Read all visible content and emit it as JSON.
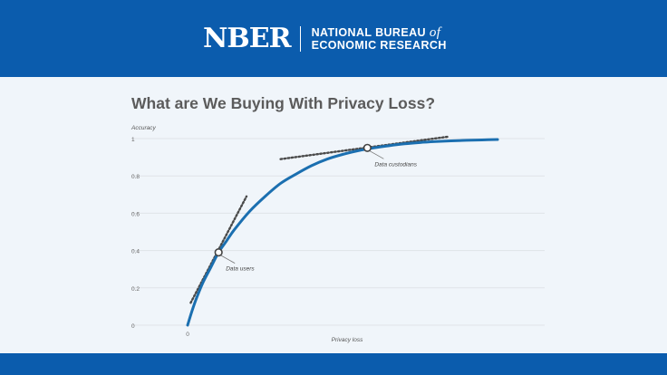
{
  "header": {
    "logo_mark": "NBER",
    "org_line1_main": "NATIONAL BUREAU ",
    "org_line1_italic": "of",
    "org_line2": "ECONOMIC RESEARCH"
  },
  "colors": {
    "brand_blue": "#0b5cad",
    "curve_blue": "#1b6fb0",
    "tangent": "#4a4a4a",
    "background": "#f0f5fa",
    "grid": "#dfe3e8"
  },
  "chart_data": {
    "type": "line",
    "title": "What are We Buying With Privacy Loss?",
    "xlabel": "Privacy loss",
    "ylabel": "Accuracy",
    "x_ticks": [
      "0"
    ],
    "y_ticks": [
      {
        "value": 0,
        "label": "0"
      },
      {
        "value": 0.2,
        "label": "0.2"
      },
      {
        "value": 0.4,
        "label": "0.4"
      },
      {
        "value": 0.6,
        "label": "0.6"
      },
      {
        "value": 0.8,
        "label": "0.8"
      },
      {
        "value": 1,
        "label": "1"
      }
    ],
    "xlim": [
      0,
      1.0
    ],
    "ylim": [
      0,
      1
    ],
    "grid": true,
    "series": [
      {
        "x": [
          0,
          0.015,
          0.03,
          0.05,
          0.075,
          0.1,
          0.125,
          0.15,
          0.2,
          0.25,
          0.3,
          0.35,
          0.4,
          0.45,
          0.5,
          0.55,
          0.6,
          0.65,
          0.7,
          0.75,
          0.8,
          0.85,
          0.9,
          0.95,
          1.0
        ],
        "y": [
          0,
          0.08,
          0.15,
          0.23,
          0.31,
          0.39,
          0.45,
          0.51,
          0.61,
          0.69,
          0.76,
          0.81,
          0.855,
          0.89,
          0.915,
          0.935,
          0.95,
          0.962,
          0.972,
          0.979,
          0.984,
          0.988,
          0.991,
          0.993,
          0.995
        ]
      }
    ],
    "tangents": [
      {
        "x": [
          0.01,
          0.19
        ],
        "y": [
          0.12,
          0.69
        ]
      },
      {
        "x": [
          0.3,
          0.84
        ],
        "y": [
          0.89,
          1.01
        ]
      }
    ],
    "annotations": [
      {
        "label": "Data users",
        "x": 0.1,
        "y": 0.39
      },
      {
        "label": "Data custodians",
        "x": 0.58,
        "y": 0.95
      }
    ]
  }
}
